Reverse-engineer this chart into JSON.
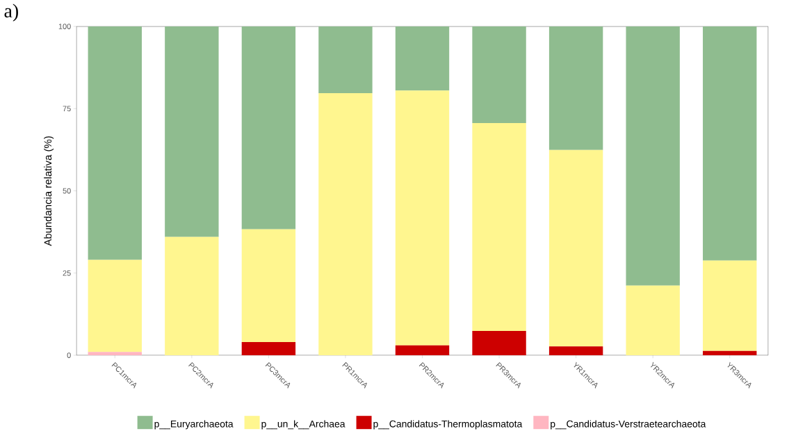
{
  "chart_data": {
    "type": "bar",
    "stacked": true,
    "annotations": [
      "a)"
    ],
    "ylabel": "Abundancia relativa (%)",
    "categories": [
      "PC1mcrA",
      "PC2mcrA",
      "PC3mcrA",
      "PR1mcrA",
      "PR2mcrA",
      "PR3mcrA",
      "YR1mcrA",
      "YR2mcrA",
      "YR3mcrA"
    ],
    "series": [
      {
        "name": "p__Candidatus-Verstraetearchaeota",
        "color": "#ffb6c1",
        "values": [
          1,
          0,
          0,
          0,
          0,
          0,
          0,
          0,
          0
        ]
      },
      {
        "name": "p__Candidatus-Thermoplasmatota",
        "color": "#cd0000",
        "values": [
          0,
          0,
          4,
          0,
          3,
          7.4,
          2.7,
          0,
          1.3
        ]
      },
      {
        "name": "p__un_k__Archaea",
        "color": "#fff68f",
        "values": [
          28,
          36,
          34.3,
          79.7,
          77.5,
          63.2,
          59.7,
          21.2,
          27.5
        ]
      },
      {
        "name": "p__Euryarchaeota",
        "color": "#8fbc8f",
        "values": [
          71,
          64,
          61.7,
          20.3,
          19.5,
          29.4,
          37.6,
          78.8,
          71.2
        ]
      }
    ],
    "ylim": [
      0,
      100
    ],
    "yticks": [
      0,
      25,
      50,
      75,
      100
    ],
    "grid": false,
    "legend": "bottom"
  }
}
